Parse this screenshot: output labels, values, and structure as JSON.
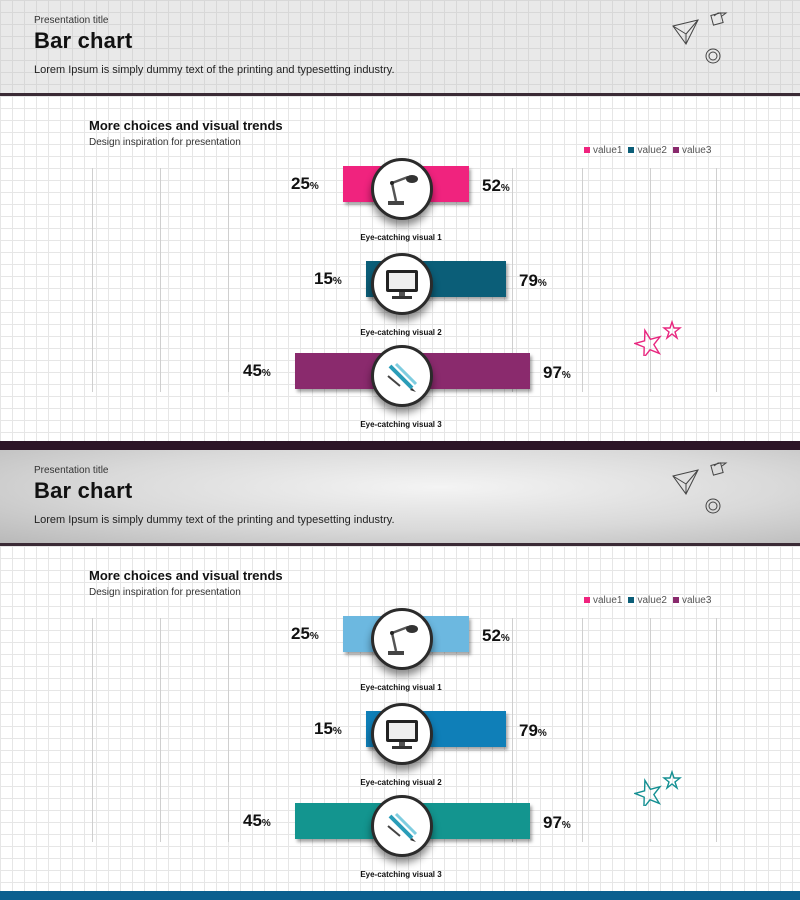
{
  "slides": [
    {
      "header": {
        "presentation_title": "Presentation title",
        "title": "Bar chart",
        "subtitle": "Lorem Ipsum is simply dummy text of the printing and typesetting industry."
      },
      "chart_title": "More choices and visual trends",
      "chart_subtitle": "Design inspiration for presentation",
      "colors": {
        "value1": "#f0237e",
        "value2": "#0b5e78",
        "value3": "#8a2a6d",
        "stars": "#e8267f"
      }
    },
    {
      "header": {
        "presentation_title": "Presentation title",
        "title": "Bar chart",
        "subtitle": "Lorem Ipsum is simply dummy text of the printing and typesetting industry."
      },
      "chart_title": "More choices and visual trends",
      "chart_subtitle": "Design inspiration for presentation",
      "colors": {
        "value1": "#6cb8e0",
        "value2": "#0f7fb8",
        "value3": "#13958f",
        "stars": "#138f92"
      }
    }
  ],
  "legend": {
    "items": [
      {
        "label": "value1",
        "color": "#f0237e"
      },
      {
        "label": "value2",
        "color": "#0b5e78"
      },
      {
        "label": "value3",
        "color": "#8a2a6d"
      }
    ]
  },
  "chart_data": [
    {
      "type": "bar",
      "orientation": "horizontal-diverging",
      "categories": [
        "Eye-catching visual 1",
        "Eye-catching visual 2",
        "Eye-catching visual 3"
      ],
      "left_values": [
        25,
        15,
        45
      ],
      "right_values": [
        52,
        79,
        97
      ],
      "left_labels": [
        "25",
        "15",
        "45"
      ],
      "right_labels": [
        "52",
        "79",
        "97"
      ],
      "unit": "%",
      "series_legend": [
        "value1",
        "value2",
        "value3"
      ],
      "icons": [
        "desk-lamp-icon",
        "monitor-icon",
        "pen-tools-icon"
      ],
      "grid": true
    },
    {
      "type": "bar",
      "orientation": "horizontal-diverging",
      "categories": [
        "Eye-catching visual 1",
        "Eye-catching visual 2",
        "Eye-catching visual 3"
      ],
      "left_values": [
        25,
        15,
        45
      ],
      "right_values": [
        52,
        79,
        97
      ],
      "left_labels": [
        "25",
        "15",
        "45"
      ],
      "right_labels": [
        "52",
        "79",
        "97"
      ],
      "unit": "%",
      "series_legend": [
        "value1",
        "value2",
        "value3"
      ],
      "icons": [
        "desk-lamp-icon",
        "monitor-icon",
        "pen-tools-icon"
      ],
      "grid": true
    }
  ]
}
